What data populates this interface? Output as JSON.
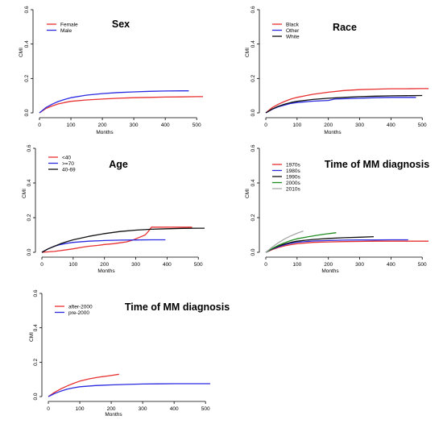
{
  "chart_data": [
    {
      "type": "line",
      "title": "Sex",
      "xlabel": "Months",
      "ylabel": "CMI",
      "xlim": [
        0,
        520
      ],
      "ylim": [
        0,
        0.6
      ],
      "xticks": [
        0,
        100,
        200,
        300,
        400,
        500
      ],
      "yticks": [
        0.0,
        0.2,
        0.4,
        0.6
      ],
      "legend_position": "top-left",
      "series": [
        {
          "name": "Female",
          "color": "#e83030",
          "x": [
            0,
            20,
            40,
            60,
            80,
            100,
            150,
            200,
            250,
            300,
            350,
            400,
            450,
            500,
            520
          ],
          "y": [
            0.0,
            0.025,
            0.04,
            0.052,
            0.06,
            0.067,
            0.075,
            0.08,
            0.085,
            0.088,
            0.09,
            0.092,
            0.093,
            0.094,
            0.094
          ]
        },
        {
          "name": "Male",
          "color": "#2a2ae0",
          "x": [
            0,
            20,
            40,
            60,
            80,
            100,
            150,
            200,
            250,
            300,
            350,
            400,
            450,
            475
          ],
          "y": [
            0.0,
            0.03,
            0.05,
            0.066,
            0.078,
            0.088,
            0.103,
            0.112,
            0.118,
            0.122,
            0.125,
            0.127,
            0.128,
            0.128
          ]
        }
      ]
    },
    {
      "type": "line",
      "title": "Race",
      "xlabel": "Months",
      "ylabel": "CMI",
      "xlim": [
        0,
        520
      ],
      "ylim": [
        0,
        0.6
      ],
      "xticks": [
        0,
        100,
        200,
        300,
        400,
        500
      ],
      "yticks": [
        0.0,
        0.2,
        0.4,
        0.6
      ],
      "legend_position": "top-left",
      "series": [
        {
          "name": "Black",
          "color": "#e83030",
          "x": [
            0,
            20,
            40,
            60,
            80,
            100,
            150,
            200,
            250,
            300,
            350,
            400,
            450,
            500,
            520
          ],
          "y": [
            0.0,
            0.03,
            0.05,
            0.066,
            0.08,
            0.09,
            0.108,
            0.12,
            0.13,
            0.135,
            0.138,
            0.14,
            0.14,
            0.141,
            0.141
          ]
        },
        {
          "name": "Other",
          "color": "#2a2ae0",
          "x": [
            0,
            20,
            40,
            60,
            80,
            100,
            150,
            200,
            220,
            250,
            300,
            350,
            400,
            450,
            480
          ],
          "y": [
            0.0,
            0.02,
            0.035,
            0.045,
            0.055,
            0.06,
            0.068,
            0.072,
            0.08,
            0.082,
            0.085,
            0.088,
            0.09,
            0.09,
            0.09
          ]
        },
        {
          "name": "White",
          "color": "#111111",
          "x": [
            0,
            20,
            40,
            60,
            80,
            100,
            150,
            200,
            250,
            300,
            350,
            400,
            450,
            500
          ],
          "y": [
            0.0,
            0.022,
            0.038,
            0.05,
            0.06,
            0.067,
            0.078,
            0.085,
            0.09,
            0.094,
            0.097,
            0.099,
            0.1,
            0.101
          ]
        }
      ]
    },
    {
      "type": "line",
      "title": "Age",
      "xlabel": "Months",
      "ylabel": "CMI",
      "xlim": [
        0,
        520
      ],
      "ylim": [
        0,
        0.6
      ],
      "xticks": [
        0,
        100,
        200,
        300,
        400,
        500
      ],
      "yticks": [
        0.0,
        0.2,
        0.4,
        0.6
      ],
      "legend_position": "top-left",
      "series": [
        {
          "name": "<40",
          "color": "#e83030",
          "x": [
            0,
            40,
            60,
            80,
            100,
            130,
            150,
            180,
            200,
            230,
            250,
            270,
            290,
            310,
            330,
            340,
            350,
            400,
            450,
            480
          ],
          "y": [
            0.0,
            0.005,
            0.01,
            0.015,
            0.02,
            0.03,
            0.035,
            0.04,
            0.045,
            0.05,
            0.055,
            0.06,
            0.07,
            0.085,
            0.1,
            0.12,
            0.145,
            0.145,
            0.145,
            0.145
          ]
        },
        {
          "name": ">=70",
          "color": "#2a2ae0",
          "x": [
            0,
            20,
            40,
            60,
            80,
            100,
            150,
            200,
            250,
            300,
            350,
            395
          ],
          "y": [
            0.0,
            0.02,
            0.035,
            0.045,
            0.052,
            0.057,
            0.064,
            0.068,
            0.07,
            0.071,
            0.072,
            0.072
          ]
        },
        {
          "name": "40-69",
          "color": "#111111",
          "x": [
            0,
            20,
            40,
            60,
            80,
            100,
            150,
            200,
            250,
            300,
            350,
            400,
            450,
            500,
            520
          ],
          "y": [
            0.0,
            0.02,
            0.035,
            0.05,
            0.062,
            0.072,
            0.092,
            0.108,
            0.12,
            0.128,
            0.133,
            0.136,
            0.138,
            0.139,
            0.139
          ]
        }
      ]
    },
    {
      "type": "line",
      "title": "Time of MM diagnosis",
      "xlabel": "Months",
      "ylabel": "CMI",
      "xlim": [
        0,
        520
      ],
      "ylim": [
        0,
        0.6
      ],
      "xticks": [
        0,
        100,
        200,
        300,
        400,
        500
      ],
      "yticks": [
        0.0,
        0.2,
        0.4,
        0.6
      ],
      "legend_position": "top-left",
      "series": [
        {
          "name": "1970s",
          "color": "#e83030",
          "x": [
            0,
            20,
            40,
            60,
            80,
            100,
            150,
            200,
            250,
            300,
            350,
            400,
            450,
            500,
            520
          ],
          "y": [
            0.0,
            0.015,
            0.028,
            0.037,
            0.044,
            0.05,
            0.057,
            0.06,
            0.062,
            0.063,
            0.064,
            0.064,
            0.064,
            0.064,
            0.064
          ]
        },
        {
          "name": "1980s",
          "color": "#2a2ae0",
          "x": [
            0,
            20,
            40,
            60,
            80,
            100,
            150,
            200,
            250,
            300,
            350,
            400,
            455
          ],
          "y": [
            0.0,
            0.018,
            0.032,
            0.043,
            0.052,
            0.058,
            0.065,
            0.068,
            0.07,
            0.071,
            0.071,
            0.072,
            0.072
          ]
        },
        {
          "name": "1990s",
          "color": "#111111",
          "x": [
            0,
            20,
            40,
            60,
            80,
            100,
            150,
            200,
            250,
            300,
            345
          ],
          "y": [
            0.0,
            0.02,
            0.036,
            0.048,
            0.057,
            0.064,
            0.074,
            0.08,
            0.084,
            0.087,
            0.09
          ]
        },
        {
          "name": "2000s",
          "color": "#1e8c1e",
          "x": [
            0,
            20,
            40,
            60,
            80,
            100,
            130,
            160,
            190,
            225
          ],
          "y": [
            0.0,
            0.022,
            0.04,
            0.055,
            0.068,
            0.078,
            0.088,
            0.097,
            0.105,
            0.113
          ]
        },
        {
          "name": "2010s",
          "color": "#a8a8a8",
          "x": [
            0,
            20,
            40,
            60,
            80,
            100,
            120
          ],
          "y": [
            0.0,
            0.03,
            0.055,
            0.077,
            0.095,
            0.11,
            0.123
          ]
        }
      ]
    },
    {
      "type": "line",
      "title": "Time of MM diagnosis",
      "xlabel": "Months",
      "ylabel": "CMI",
      "xlim": [
        0,
        520
      ],
      "ylim": [
        0,
        0.6
      ],
      "xticks": [
        0,
        100,
        200,
        300,
        400,
        500
      ],
      "yticks": [
        0.0,
        0.2,
        0.4,
        0.6
      ],
      "legend_position": "top-left",
      "series": [
        {
          "name": "after-2000",
          "color": "#e83030",
          "x": [
            0,
            20,
            40,
            60,
            80,
            100,
            130,
            160,
            190,
            225
          ],
          "y": [
            0.0,
            0.025,
            0.045,
            0.062,
            0.077,
            0.09,
            0.103,
            0.113,
            0.12,
            0.13
          ]
        },
        {
          "name": "pre-2000",
          "color": "#2a2ae0",
          "x": [
            0,
            20,
            40,
            60,
            80,
            100,
            150,
            200,
            250,
            300,
            350,
            400,
            450,
            515
          ],
          "y": [
            0.0,
            0.018,
            0.032,
            0.043,
            0.051,
            0.057,
            0.064,
            0.068,
            0.071,
            0.073,
            0.074,
            0.075,
            0.075,
            0.075
          ]
        }
      ]
    }
  ]
}
